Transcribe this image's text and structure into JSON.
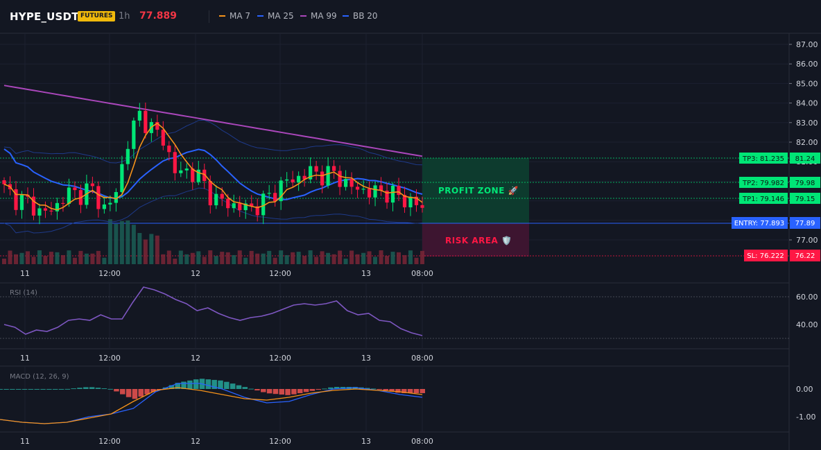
{
  "header": {
    "symbol": "HYPE_USDT",
    "badge": "FUTURES",
    "timeframe": "1h",
    "last_price": "77.889",
    "indicators": [
      {
        "label": "MA 7",
        "color": "#f7931a"
      },
      {
        "label": "MA 25",
        "color": "#2962ff"
      },
      {
        "label": "MA 99",
        "color": "#ab47bc"
      },
      {
        "label": "BB 20",
        "color": "#1e40af"
      }
    ]
  },
  "price_axis": {
    "ticks": [
      "87.00",
      "86.00",
      "85.00",
      "84.00",
      "83.00",
      "82.00",
      "81.00",
      "80.00",
      "79.00",
      "78.00",
      "77.00"
    ]
  },
  "time_axis": {
    "ticks": [
      "11",
      "12:00",
      "12",
      "12:00",
      "13",
      "08:00"
    ]
  },
  "levels": {
    "tp3": {
      "label": "TP3: 81.235",
      "axis": "81.24"
    },
    "tp2": {
      "label": "TP2: 79.982",
      "axis": "79.98"
    },
    "tp1": {
      "label": "TP1: 79.146",
      "axis": "79.15"
    },
    "entry": {
      "label": "ENTRY: 77.893",
      "axis": "77.89"
    },
    "sl": {
      "label": "SL: 76.222",
      "axis": "76.22"
    }
  },
  "zones": {
    "profit": "PROFIT ZONE 🚀",
    "risk": "RISK AREA 🛡️"
  },
  "rsi": {
    "title": "RSI (14)",
    "ticks": [
      "60.00",
      "40.00"
    ]
  },
  "macd": {
    "title": "MACD (12, 26, 9)",
    "ticks": [
      "0.00",
      "-1.00"
    ]
  },
  "colors": {
    "up": "#26a69a",
    "up_bright": "#00e676",
    "down": "#ff1744",
    "ma7": "#f7931a",
    "ma25": "#2962ff",
    "ma99": "#ab47bc",
    "bb": "#1e3a8a",
    "profit_zone": "#0b3d2e",
    "risk_zone": "#4a1430",
    "tp": "#00e676",
    "entry": "#2962ff",
    "sl": "#ff1744"
  },
  "chart_data": [
    {
      "type": "candlestick",
      "title": "HYPE_USDT 1h",
      "x": [
        "11",
        "12:00",
        "12",
        "12:00",
        "13",
        "08:00"
      ],
      "ylim": [
        76.0,
        87.3
      ],
      "close_path": [
        79.6,
        79.1,
        78.9,
        78.4,
        78.5,
        79.4,
        79.3,
        79.7,
        78.6,
        79.1,
        82.0,
        83.4,
        82.7,
        82.1,
        80.3,
        80.6,
        80.1,
        79.1,
        78.9,
        78.7,
        78.6,
        78.9,
        79.5,
        80.0,
        80.2,
        80.5,
        80.3,
        80.4,
        79.7,
        79.6,
        79.4,
        79.5,
        79.2,
        79.0,
        78.6
      ]
    },
    {
      "type": "line",
      "title": "RSI (14)",
      "ylim": [
        20,
        70
      ],
      "values": [
        40,
        38,
        33,
        36,
        35,
        38,
        43,
        44,
        43,
        47,
        44,
        44,
        56,
        67,
        65,
        62,
        58,
        55,
        50,
        52,
        48,
        45,
        43,
        45,
        46,
        48,
        51,
        54,
        55,
        54,
        55,
        57,
        50,
        47,
        48,
        43,
        42,
        37,
        34,
        32
      ]
    },
    {
      "type": "line",
      "title": "MACD (12, 26, 9)",
      "ylim": [
        -1.6,
        0.6
      ],
      "macd": [
        -1.1,
        -1.2,
        -1.25,
        -1.2,
        -1.0,
        -0.9,
        -0.7,
        -0.1,
        0.2,
        0.2,
        0.0,
        -0.3,
        -0.5,
        -0.45,
        -0.2,
        0.0,
        0.05,
        -0.05,
        -0.2,
        -0.3
      ],
      "signal": [
        -1.1,
        -1.2,
        -1.25,
        -1.2,
        -1.05,
        -0.9,
        -0.45,
        -0.05,
        0.05,
        -0.05,
        -0.2,
        -0.35,
        -0.4,
        -0.3,
        -0.15,
        -0.05,
        0.0,
        -0.05,
        -0.1,
        -0.2
      ]
    }
  ]
}
